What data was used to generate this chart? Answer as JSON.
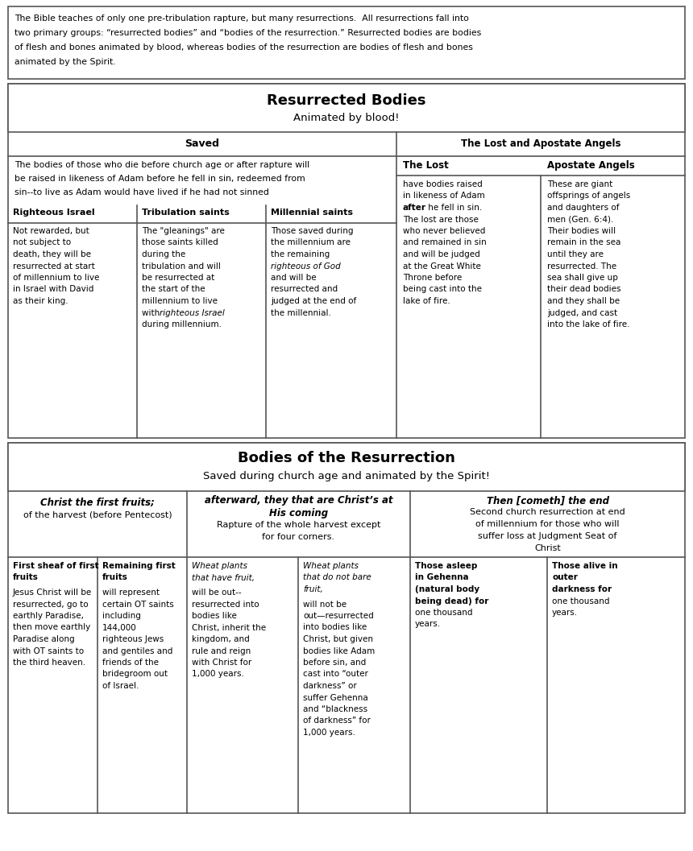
{
  "bg_color": "#ffffff",
  "page_bg": "#f5f5f0",
  "border_color": "#666666",
  "font_family": "DejaVu Sans",
  "intro_text_lines": [
    "The Bible teaches of only one pre-tribulation rapture, but many resurrections.  All resurrections fall into",
    "two primary groups: “resurrected bodies” and “bodies of the resurrection.” Resurrected bodies are bodies",
    "of flesh and bones animated by blood, whereas bodies of the resurrection are bodies of flesh and bones",
    "animated by the Spirit."
  ],
  "s1_title": "Resurrected Bodies",
  "s1_subtitle": "Animated by blood!",
  "saved_header": "Saved",
  "saved_desc": [
    "The bodies of those who die before church age or after rapture will",
    "be raised in likeness of Adam before he fell in sin, redeemed from",
    "sin--to live as Adam would have lived if he had not sinned"
  ],
  "col1_header": "Righteous Israel",
  "col1_body": [
    "Not rewarded, but",
    "not subject to",
    "death, they will be",
    "resurrected at start",
    "of millennium to live",
    "in Israel with David",
    "as their king."
  ],
  "col2_header": "Tribulation saints",
  "col2_body": [
    "The \"gleanings\" are",
    "those saints killed",
    "during the",
    "tribulation and will",
    "be resurrected at",
    "the start of the",
    "millennium to live",
    [
      "with ",
      "righteous Israel",
      " italic"
    ],
    "during millennium."
  ],
  "col3_header": "Millennial saints",
  "col3_body": [
    "Those saved during",
    "the millennium are",
    "the remaining",
    [
      "righteous of God",
      " italic"
    ],
    "and will be",
    "resurrected and",
    "judged at the end of",
    "the millennial."
  ],
  "lost_apostate_header": "The Lost and Apostate Angels",
  "the_lost_header": "The Lost",
  "the_lost_body": [
    "have bodies raised",
    "in likeness of Adam",
    [
      "after",
      " bold"
    ],
    " he fell in sin.",
    "The lost are those",
    "who never believed",
    "and remained in sin",
    "and will be judged",
    "at the Great White",
    "Throne before",
    "being cast into the",
    "lake of fire."
  ],
  "apostate_header": "Apostate Angels",
  "apostate_body": [
    "These are giant",
    "offsprings of angels",
    "and daughters of",
    "men (Gen. 6:4).",
    "Their bodies will",
    "remain in the sea",
    "until they are",
    "resurrected. The",
    "sea shall give up",
    "their dead bodies",
    "and they shall be",
    "judged, and cast",
    "into the lake of fire."
  ],
  "s2_title": "Bodies of the Resurrection",
  "s2_subtitle": "Saved during church age and animated by the Spirit!",
  "b2c1_hdr1": "Christ the first fruits;",
  "b2c1_hdr2": "of the harvest (before Pentecost)",
  "b2c2_hdr1": "afterward, they that are Christ’s at",
  "b2c2_hdr2": "His coming",
  "b2c2_hdr3": "Rapture of the whole harvest except",
  "b2c2_hdr4": "for four corners.",
  "b2c3_hdr1": "Then [cometh] the end",
  "b2c3_hdr2": "Second church resurrection at end",
  "b2c3_hdr3": "of millennium for those who will",
  "b2c3_hdr4": "suffer loss at Judgment Seat of",
  "b2c3_hdr5": "Christ",
  "sub1_hdr": [
    "First sheaf of first",
    "fruits"
  ],
  "sub1_body": [
    "Jesus Christ will be",
    "resurrected, go to",
    "earthly Paradise,",
    "then move earthly",
    "Paradise along",
    "with OT saints to",
    "the third heaven."
  ],
  "sub2_hdr": [
    "Remaining first",
    "fruits"
  ],
  "sub2_body": [
    "will represent",
    "certain OT saints",
    "including",
    "144,000",
    "righteous Jews",
    "and gentiles and",
    "friends of the",
    "bridegroom out",
    "of Israel."
  ],
  "sub3_hdr": [
    "Wheat plants",
    "that have fruit,"
  ],
  "sub3_body": [
    "will be out--",
    "resurrected into",
    "bodies like",
    "Christ, inherit the",
    "kingdom, and",
    "rule and reign",
    "with Christ for",
    "1,000 years."
  ],
  "sub4_hdr": [
    "Wheat plants",
    "that do not bare",
    "fruit,"
  ],
  "sub4_body": [
    "will not be",
    "out—resurrected",
    "into bodies like",
    "Christ, but given",
    "bodies like Adam",
    "before sin, and",
    "cast into “outer",
    "darkness” or",
    "suffer Gehenna",
    "and “blackness",
    "of darkness” for",
    "1,000 years."
  ],
  "sub5_hdr": [
    "Those asleep",
    "in Gehenna",
    "(natural body",
    "being dead) for",
    "one thousand",
    "years."
  ],
  "sub5_body": [],
  "sub6_hdr": [
    "Those alive in",
    "outer",
    "darkness for",
    "one thousand",
    "years."
  ],
  "sub6_body": []
}
